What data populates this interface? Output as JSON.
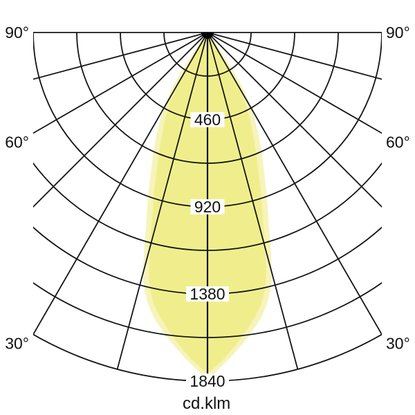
{
  "colors": {
    "background": "#ffffff",
    "grid_line": "#141414",
    "text": "#111111",
    "label_chip_bg": "#ffffff",
    "beam_main_fill": "#f0ee8c",
    "beam_pale_fill": "#f6f4ba",
    "origin_dot": "#000000"
  },
  "chart_data": {
    "type": "line",
    "subtype": "polar-photometric-distribution",
    "title": "",
    "unit": "cd.klm",
    "grid": "polar, arcs every 230 cd.klm, rays every 15 degrees, grid on",
    "angle_ray_step_deg": 15,
    "angle_ray_ticks_deg": [
      0,
      15,
      30,
      45,
      60,
      75,
      90
    ],
    "angle_labels": [
      {
        "text": "90°",
        "deg": 90
      },
      {
        "text": "60°",
        "deg": 60
      },
      {
        "text": "30°",
        "deg": 30
      }
    ],
    "angle_labels_sides": [
      "left",
      "right"
    ],
    "radial_arcs_values": [
      230,
      460,
      690,
      920,
      1150,
      1380,
      1610,
      1840
    ],
    "radial_tick_labels": [
      {
        "text": "460",
        "value": 460
      },
      {
        "text": "920",
        "value": 920
      },
      {
        "text": "1380",
        "value": 1380
      },
      {
        "text": "1840",
        "value": 1840
      }
    ],
    "r_max": 1840,
    "legend_position": "none",
    "series": [
      {
        "name": "beam-outline-pale",
        "style": "filled, pale yellow, drawn under main beam",
        "profile_deg_value": [
          [
            38,
            0
          ],
          [
            35.5,
            126
          ],
          [
            34.2,
            234
          ],
          [
            32.7,
            338
          ],
          [
            30.6,
            437
          ],
          [
            28.3,
            531
          ],
          [
            26.1,
            622
          ],
          [
            23.9,
            711
          ],
          [
            22,
            799
          ],
          [
            20.4,
            888
          ],
          [
            19,
            977
          ],
          [
            17.7,
            1066
          ],
          [
            16.7,
            1155
          ],
          [
            15.7,
            1244
          ],
          [
            14.8,
            1333
          ],
          [
            13.7,
            1402
          ],
          [
            12.3,
            1469
          ],
          [
            10.6,
            1534
          ],
          [
            8.4,
            1598
          ],
          [
            6.1,
            1663
          ],
          [
            3.9,
            1724
          ],
          [
            2.1,
            1772
          ],
          [
            0.9,
            1808
          ],
          [
            0,
            1833
          ]
        ]
      },
      {
        "name": "beam-outline-main",
        "style": "filled, yellow (khaki), symmetric narrow downward lobe",
        "profile_deg_value": [
          [
            33,
            0
          ],
          [
            29.7,
            118
          ],
          [
            29.5,
            222
          ],
          [
            29.4,
            327
          ],
          [
            28.1,
            426
          ],
          [
            25.8,
            519
          ],
          [
            23.6,
            610
          ],
          [
            21.7,
            700
          ],
          [
            20,
            789
          ],
          [
            18.7,
            878
          ],
          [
            17.3,
            968
          ],
          [
            16.2,
            1057
          ],
          [
            15.3,
            1147
          ],
          [
            14.4,
            1236
          ],
          [
            13.5,
            1326
          ],
          [
            12.5,
            1395
          ],
          [
            11.2,
            1463
          ],
          [
            9.3,
            1528
          ],
          [
            7.2,
            1594
          ],
          [
            5.1,
            1660
          ],
          [
            3,
            1722
          ],
          [
            1.4,
            1764
          ],
          [
            0,
            1800
          ]
        ]
      }
    ]
  }
}
